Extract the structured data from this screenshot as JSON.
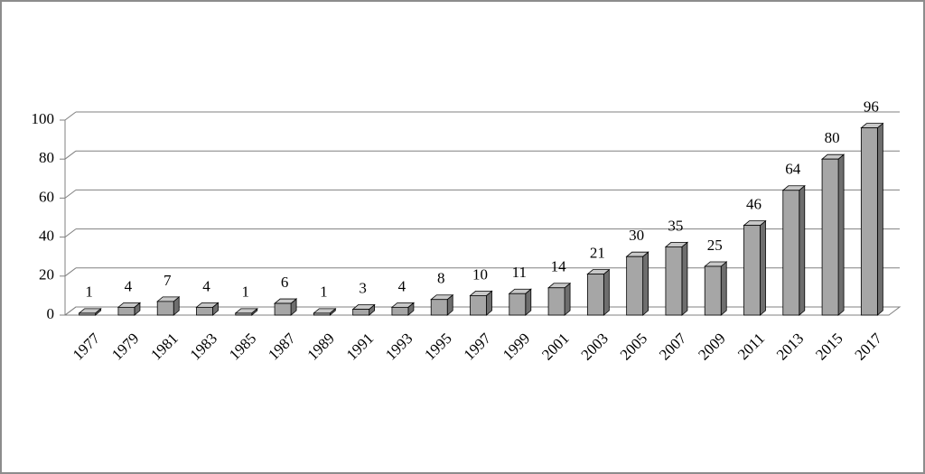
{
  "chart_data": {
    "type": "bar",
    "categories": [
      "1977",
      "1979",
      "1981",
      "1983",
      "1985",
      "1987",
      "1989",
      "1991",
      "1993",
      "1995",
      "1997",
      "1999",
      "2001",
      "2003",
      "2005",
      "2007",
      "2009",
      "2011",
      "2013",
      "2015",
      "2017"
    ],
    "values": [
      1,
      4,
      7,
      4,
      1,
      6,
      1,
      3,
      4,
      8,
      10,
      11,
      14,
      21,
      30,
      35,
      25,
      46,
      64,
      80,
      96
    ],
    "color": "#a6a6a6",
    "ylim": [
      0,
      100
    ],
    "yticks": [
      0,
      20,
      40,
      60,
      80,
      100
    ],
    "grid": true
  }
}
